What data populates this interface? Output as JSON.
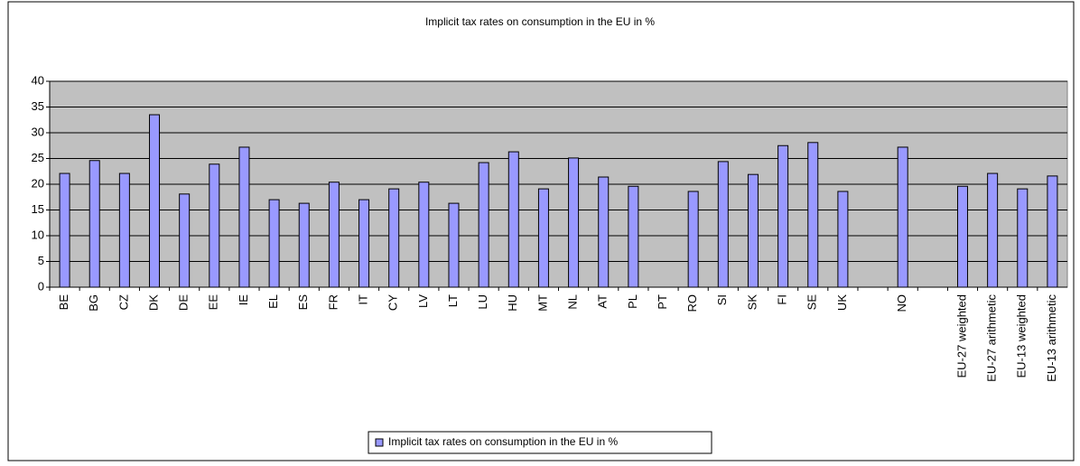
{
  "chart_data": {
    "type": "bar",
    "title": "Implicit tax rates on consumption in the EU in %",
    "categories": [
      "BE",
      "BG",
      "CZ",
      "DK",
      "DE",
      "EE",
      "IE",
      "EL",
      "ES",
      "FR",
      "IT",
      "CY",
      "LV",
      "LT",
      "LU",
      "HU",
      "MT",
      "NL",
      "AT",
      "PL",
      "PT",
      "RO",
      "SI",
      "SK",
      "FI",
      "SE",
      "UK",
      null,
      "NO",
      null,
      "EU-27 weighted",
      "EU-27 arithmetic",
      "EU-13 weighted",
      "EU-13 arithmetic"
    ],
    "series": [
      {
        "name": "Implicit tax rates on consumption in the EU in %",
        "color": "#9999ff",
        "values": [
          22.1,
          24.6,
          22.1,
          33.5,
          18.1,
          23.9,
          27.2,
          17.0,
          16.3,
          20.4,
          17.0,
          19.1,
          20.4,
          16.3,
          24.2,
          26.3,
          19.1,
          25.1,
          21.4,
          19.6,
          null,
          18.6,
          24.4,
          21.9,
          27.5,
          28.1,
          18.6,
          null,
          27.2,
          null,
          19.6,
          22.1,
          19.1,
          21.6
        ]
      }
    ],
    "ylim": [
      0,
      40
    ],
    "yticks": [
      0,
      5,
      10,
      15,
      20,
      25,
      30,
      35,
      40
    ],
    "grid": true,
    "legend": "bottom"
  }
}
